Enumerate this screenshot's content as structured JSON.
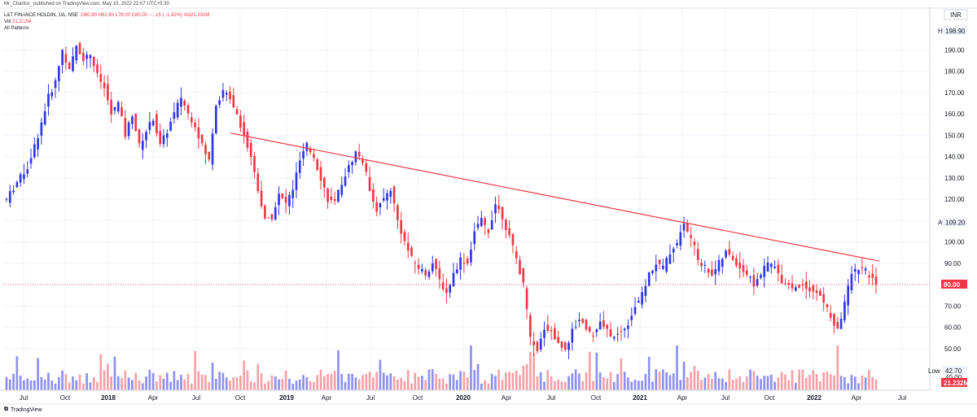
{
  "header": {
    "published": "Mr_Chartist_ published on TradingView.com, May 10, 2022 22:07 UTC+5:30",
    "symbol": "L&T FINANCE HOLDIN, 1W, NSE",
    "ohlc": "O80.80 H81.90 L78.00 C80.00 −1.15 (−1.42%) Vol21.232M",
    "vol_label": "Vol",
    "vol_value": "21.232M",
    "patterns": "All Patterns"
  },
  "currency": "INR",
  "labels": {
    "high": "High",
    "high_value": "198.90",
    "avg": "Avg",
    "avg_value": "109.20",
    "low": "Low",
    "low_value": "42.70",
    "last_price": "80.00",
    "last_volume": "21.232M",
    "vol_small": "40.00"
  },
  "footer": {
    "logo": "TradingView"
  },
  "colors": {
    "up": "#2e35e6",
    "down": "#f23645",
    "up_vol": "#8c90f0",
    "down_vol": "#f7a0a6",
    "trend": "#f23645",
    "grid": "#f0f3fa"
  },
  "chart_data": {
    "type": "candlestick",
    "timeframe": "1W",
    "x_ticks": [
      "Jul",
      "Oct",
      "2018",
      "Apr",
      "Jul",
      "Oct",
      "2019",
      "Apr",
      "Jul",
      "Oct",
      "2020",
      "Apr",
      "Jul",
      "Oct",
      "2021",
      "Apr",
      "Jul",
      "Oct",
      "2022",
      "Apr",
      "Jul"
    ],
    "y_ticks": [
      50,
      60,
      70,
      80,
      90,
      100,
      110,
      120,
      130,
      140,
      150,
      160,
      170,
      180,
      190
    ],
    "ylim": [
      40,
      205
    ],
    "price_path": [
      [
        0,
        120
      ],
      [
        3,
        128
      ],
      [
        6,
        135
      ],
      [
        9,
        150
      ],
      [
        12,
        168
      ],
      [
        14,
        175
      ],
      [
        16,
        190
      ],
      [
        18,
        180
      ],
      [
        20,
        192
      ],
      [
        22,
        186
      ],
      [
        24,
        188
      ],
      [
        26,
        178
      ],
      [
        28,
        172
      ],
      [
        30,
        160
      ],
      [
        32,
        165
      ],
      [
        34,
        150
      ],
      [
        36,
        160
      ],
      [
        38,
        145
      ],
      [
        40,
        152
      ],
      [
        42,
        158
      ],
      [
        44,
        145
      ],
      [
        46,
        152
      ],
      [
        48,
        160
      ],
      [
        50,
        168
      ],
      [
        52,
        160
      ],
      [
        54,
        155
      ],
      [
        56,
        145
      ],
      [
        58,
        138
      ],
      [
        60,
        165
      ],
      [
        62,
        170
      ],
      [
        64,
        168
      ],
      [
        66,
        160
      ],
      [
        68,
        150
      ],
      [
        70,
        140
      ],
      [
        72,
        125
      ],
      [
        74,
        110
      ],
      [
        76,
        112
      ],
      [
        78,
        122
      ],
      [
        80,
        118
      ],
      [
        82,
        125
      ],
      [
        84,
        138
      ],
      [
        86,
        145
      ],
      [
        88,
        140
      ],
      [
        90,
        130
      ],
      [
        92,
        120
      ],
      [
        94,
        118
      ],
      [
        96,
        128
      ],
      [
        98,
        135
      ],
      [
        100,
        142
      ],
      [
        102,
        138
      ],
      [
        104,
        125
      ],
      [
        106,
        115
      ],
      [
        108,
        120
      ],
      [
        110,
        125
      ],
      [
        112,
        110
      ],
      [
        114,
        100
      ],
      [
        116,
        92
      ],
      [
        118,
        88
      ],
      [
        120,
        85
      ],
      [
        122,
        90
      ],
      [
        124,
        82
      ],
      [
        126,
        76
      ],
      [
        128,
        85
      ],
      [
        130,
        92
      ],
      [
        132,
        90
      ],
      [
        134,
        105
      ],
      [
        136,
        110
      ],
      [
        138,
        105
      ],
      [
        140,
        118
      ],
      [
        142,
        112
      ],
      [
        144,
        102
      ],
      [
        146,
        92
      ],
      [
        148,
        80
      ],
      [
        150,
        55
      ],
      [
        152,
        48
      ],
      [
        154,
        60
      ],
      [
        156,
        58
      ],
      [
        158,
        52
      ],
      [
        160,
        50
      ],
      [
        162,
        58
      ],
      [
        164,
        64
      ],
      [
        166,
        60
      ],
      [
        168,
        56
      ],
      [
        170,
        62
      ],
      [
        172,
        58
      ],
      [
        174,
        55
      ],
      [
        176,
        58
      ],
      [
        178,
        62
      ],
      [
        180,
        70
      ],
      [
        182,
        75
      ],
      [
        184,
        85
      ],
      [
        186,
        90
      ],
      [
        188,
        88
      ],
      [
        190,
        95
      ],
      [
        192,
        100
      ],
      [
        194,
        108
      ],
      [
        196,
        102
      ],
      [
        198,
        92
      ],
      [
        200,
        88
      ],
      [
        202,
        85
      ],
      [
        204,
        90
      ],
      [
        206,
        95
      ],
      [
        208,
        92
      ],
      [
        210,
        88
      ],
      [
        212,
        85
      ],
      [
        214,
        80
      ],
      [
        216,
        85
      ],
      [
        218,
        90
      ],
      [
        220,
        88
      ],
      [
        222,
        82
      ],
      [
        224,
        80
      ],
      [
        226,
        78
      ],
      [
        228,
        80
      ],
      [
        230,
        78
      ],
      [
        232,
        76
      ],
      [
        234,
        72
      ],
      [
        236,
        65
      ],
      [
        238,
        58
      ],
      [
        240,
        72
      ],
      [
        242,
        85
      ],
      [
        244,
        88
      ],
      [
        246,
        86
      ],
      [
        248,
        82
      ],
      [
        250,
        80
      ]
    ],
    "candles_count": 250,
    "trendline": {
      "from_price": 151,
      "to_price": 91,
      "label": ""
    },
    "high": 198.9,
    "avg": 109.2,
    "low": 42.7,
    "last_close": 80.0,
    "last_volume": "21.232M"
  }
}
